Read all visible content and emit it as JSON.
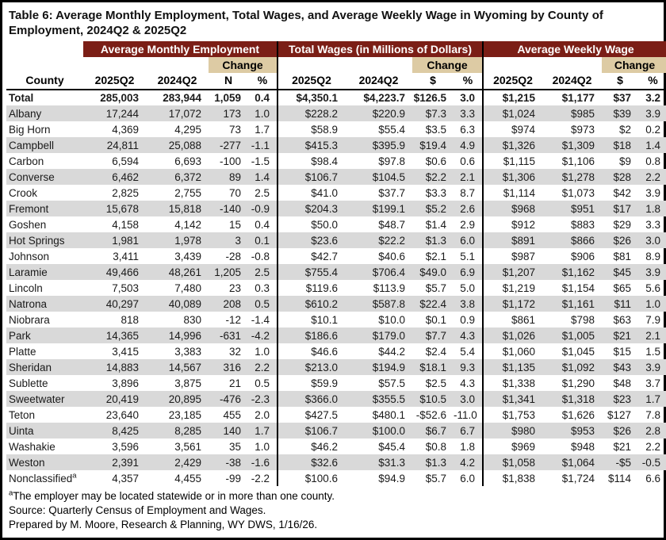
{
  "title_line1": "Table 6: Average Monthly Employment, Total Wages, and Average Weekly Wage in Wyoming by County of",
  "title_line2": "Employment, 2024Q2 & 2025Q2",
  "colors": {
    "header_maroon": "#7b1e16",
    "change_tan": "#ddcba4",
    "row_stripe": "#d9d9d9"
  },
  "table": {
    "sections": [
      {
        "label": "Average Monthly Employment"
      },
      {
        "label": "Total Wages (in Millions of Dollars)"
      },
      {
        "label": "Average Weekly Wage"
      }
    ],
    "change_label": "Change",
    "columns": [
      "County",
      "2025Q2",
      "2024Q2",
      "N",
      "%",
      "2025Q2",
      "2024Q2",
      "$",
      "%",
      "2025Q2",
      "2024Q2",
      "$",
      "%"
    ],
    "rows": [
      {
        "county": "Total",
        "bold": true,
        "values": [
          "285,003",
          "283,944",
          "1,059",
          "0.4",
          "$4,350.1",
          "$4,223.7",
          "$126.5",
          "3.0",
          "$1,215",
          "$1,177",
          "$37",
          "3.2"
        ]
      },
      {
        "county": "Albany",
        "values": [
          "17,244",
          "17,072",
          "173",
          "1.0",
          "$228.2",
          "$220.9",
          "$7.3",
          "3.3",
          "$1,024",
          "$985",
          "$39",
          "3.9"
        ]
      },
      {
        "county": "Big Horn",
        "values": [
          "4,369",
          "4,295",
          "73",
          "1.7",
          "$58.9",
          "$55.4",
          "$3.5",
          "6.3",
          "$974",
          "$973",
          "$2",
          "0.2"
        ]
      },
      {
        "county": "Campbell",
        "values": [
          "24,811",
          "25,088",
          "-277",
          "-1.1",
          "$415.3",
          "$395.9",
          "$19.4",
          "4.9",
          "$1,326",
          "$1,309",
          "$18",
          "1.4"
        ]
      },
      {
        "county": "Carbon",
        "values": [
          "6,594",
          "6,693",
          "-100",
          "-1.5",
          "$98.4",
          "$97.8",
          "$0.6",
          "0.6",
          "$1,115",
          "$1,106",
          "$9",
          "0.8"
        ]
      },
      {
        "county": "Converse",
        "values": [
          "6,462",
          "6,372",
          "89",
          "1.4",
          "$106.7",
          "$104.5",
          "$2.2",
          "2.1",
          "$1,306",
          "$1,278",
          "$28",
          "2.2"
        ]
      },
      {
        "county": "Crook",
        "values": [
          "2,825",
          "2,755",
          "70",
          "2.5",
          "$41.0",
          "$37.7",
          "$3.3",
          "8.7",
          "$1,114",
          "$1,073",
          "$42",
          "3.9"
        ]
      },
      {
        "county": "Fremont",
        "values": [
          "15,678",
          "15,818",
          "-140",
          "-0.9",
          "$204.3",
          "$199.1",
          "$5.2",
          "2.6",
          "$968",
          "$951",
          "$17",
          "1.8"
        ]
      },
      {
        "county": "Goshen",
        "values": [
          "4,158",
          "4,142",
          "15",
          "0.4",
          "$50.0",
          "$48.7",
          "$1.4",
          "2.9",
          "$912",
          "$883",
          "$29",
          "3.3"
        ]
      },
      {
        "county": "Hot Springs",
        "values": [
          "1,981",
          "1,978",
          "3",
          "0.1",
          "$23.6",
          "$22.2",
          "$1.3",
          "6.0",
          "$891",
          "$866",
          "$26",
          "3.0"
        ]
      },
      {
        "county": "Johnson",
        "values": [
          "3,411",
          "3,439",
          "-28",
          "-0.8",
          "$42.7",
          "$40.6",
          "$2.1",
          "5.1",
          "$987",
          "$906",
          "$81",
          "8.9"
        ]
      },
      {
        "county": "Laramie",
        "values": [
          "49,466",
          "48,261",
          "1,205",
          "2.5",
          "$755.4",
          "$706.4",
          "$49.0",
          "6.9",
          "$1,207",
          "$1,162",
          "$45",
          "3.9"
        ]
      },
      {
        "county": "Lincoln",
        "values": [
          "7,503",
          "7,480",
          "23",
          "0.3",
          "$119.6",
          "$113.9",
          "$5.7",
          "5.0",
          "$1,219",
          "$1,154",
          "$65",
          "5.6"
        ]
      },
      {
        "county": "Natrona",
        "values": [
          "40,297",
          "40,089",
          "208",
          "0.5",
          "$610.2",
          "$587.8",
          "$22.4",
          "3.8",
          "$1,172",
          "$1,161",
          "$11",
          "1.0"
        ]
      },
      {
        "county": "Niobrara",
        "values": [
          "818",
          "830",
          "-12",
          "-1.4",
          "$10.1",
          "$10.0",
          "$0.1",
          "0.9",
          "$861",
          "$798",
          "$63",
          "7.9"
        ]
      },
      {
        "county": "Park",
        "values": [
          "14,365",
          "14,996",
          "-631",
          "-4.2",
          "$186.6",
          "$179.0",
          "$7.7",
          "4.3",
          "$1,026",
          "$1,005",
          "$21",
          "2.1"
        ]
      },
      {
        "county": "Platte",
        "values": [
          "3,415",
          "3,383",
          "32",
          "1.0",
          "$46.6",
          "$44.2",
          "$2.4",
          "5.4",
          "$1,060",
          "$1,045",
          "$15",
          "1.5"
        ]
      },
      {
        "county": "Sheridan",
        "values": [
          "14,883",
          "14,567",
          "316",
          "2.2",
          "$213.0",
          "$194.9",
          "$18.1",
          "9.3",
          "$1,135",
          "$1,092",
          "$43",
          "3.9"
        ]
      },
      {
        "county": "Sublette",
        "values": [
          "3,896",
          "3,875",
          "21",
          "0.5",
          "$59.9",
          "$57.5",
          "$2.5",
          "4.3",
          "$1,338",
          "$1,290",
          "$48",
          "3.7"
        ]
      },
      {
        "county": "Sweetwater",
        "values": [
          "20,419",
          "20,895",
          "-476",
          "-2.3",
          "$366.0",
          "$355.5",
          "$10.5",
          "3.0",
          "$1,341",
          "$1,318",
          "$23",
          "1.7"
        ]
      },
      {
        "county": "Teton",
        "values": [
          "23,640",
          "23,185",
          "455",
          "2.0",
          "$427.5",
          "$480.1",
          "-$52.6",
          "-11.0",
          "$1,753",
          "$1,626",
          "$127",
          "7.8"
        ]
      },
      {
        "county": "Uinta",
        "values": [
          "8,425",
          "8,285",
          "140",
          "1.7",
          "$106.7",
          "$100.0",
          "$6.7",
          "6.7",
          "$980",
          "$953",
          "$26",
          "2.8"
        ]
      },
      {
        "county": "Washakie",
        "values": [
          "3,596",
          "3,561",
          "35",
          "1.0",
          "$46.2",
          "$45.4",
          "$0.8",
          "1.8",
          "$969",
          "$948",
          "$21",
          "2.2"
        ]
      },
      {
        "county": "Weston",
        "values": [
          "2,391",
          "2,429",
          "-38",
          "-1.6",
          "$32.6",
          "$31.3",
          "$1.3",
          "4.2",
          "$1,058",
          "$1,064",
          "-$5",
          "-0.5"
        ]
      },
      {
        "county": "Nonclassified",
        "superscript": "a",
        "values": [
          "4,357",
          "4,455",
          "-99",
          "-2.2",
          "$100.6",
          "$94.9",
          "$5.7",
          "6.0",
          "$1,838",
          "$1,724",
          "$114",
          "6.6"
        ]
      }
    ]
  },
  "footnotes": [
    {
      "superscript": "a",
      "text": "The employer may be located statewide or in more than one county."
    },
    {
      "text": "Source: Quarterly Census of Employment and Wages."
    },
    {
      "text": "Prepared by M. Moore, Research & Planning, WY DWS, 1/16/26."
    }
  ]
}
